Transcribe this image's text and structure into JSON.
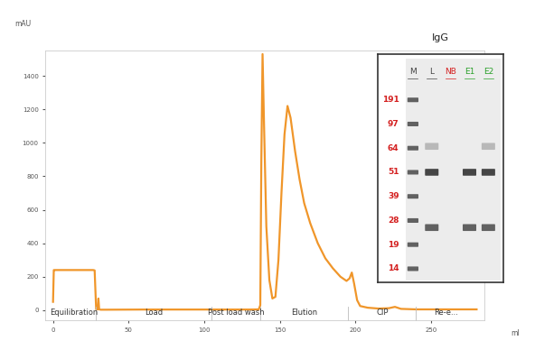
{
  "chart_data": {
    "type": "line",
    "x_label": "ml",
    "y_label": "mAU",
    "x": [
      0,
      0.5,
      1,
      26.5,
      27.5,
      28.5,
      29.5,
      30,
      30.5,
      31.5,
      35,
      60,
      105,
      130,
      136,
      137,
      137.7,
      138.5,
      139.5,
      141,
      143,
      145,
      147,
      149,
      151,
      153,
      155,
      157,
      160,
      163,
      166,
      170,
      175,
      180,
      185,
      190,
      194,
      196,
      197.5,
      199,
      201,
      203,
      208,
      215,
      222,
      226,
      230,
      240,
      260,
      280
    ],
    "values": [
      50,
      240,
      240,
      240,
      238,
      5,
      5,
      70,
      5,
      3,
      3,
      4,
      4,
      4,
      5,
      30,
      900,
      1530,
      1100,
      500,
      180,
      70,
      80,
      300,
      700,
      1050,
      1220,
      1150,
      950,
      780,
      640,
      520,
      400,
      310,
      250,
      200,
      175,
      190,
      225,
      160,
      60,
      25,
      15,
      10,
      12,
      20,
      8,
      5,
      5,
      5
    ],
    "color": "#f0962a",
    "xlim": [
      -5,
      285
    ],
    "ylim": [
      -60,
      1550
    ],
    "xticks": [
      0,
      50,
      100,
      150,
      200,
      250
    ],
    "yticks": [
      0,
      200,
      400,
      600,
      800,
      1000,
      1200,
      1400
    ],
    "phases": [
      {
        "label": "Equilibration",
        "start": 0,
        "end": 28
      },
      {
        "label": "Load",
        "start": 28,
        "end": 105
      },
      {
        "label": "Post load wash",
        "start": 105,
        "end": 137
      },
      {
        "label": "Elution",
        "start": 137,
        "end": 195
      },
      {
        "label": "CIP",
        "start": 195,
        "end": 240
      },
      {
        "label": "Re-e...",
        "start": 240,
        "end": 280
      }
    ]
  },
  "gel": {
    "title": "IgG",
    "markers": [
      191,
      97,
      64,
      51,
      39,
      28,
      19,
      14
    ],
    "marker_color": "#d42020",
    "lanes": [
      {
        "label": "M",
        "color": "#444444",
        "bands": [
          191,
          97,
          64,
          51,
          39,
          28,
          19,
          14
        ]
      },
      {
        "label": "L",
        "color": "#444444",
        "bands": [
          51,
          25,
          66
        ]
      },
      {
        "label": "NB",
        "color": "#d42020",
        "bands": []
      },
      {
        "label": "E1",
        "color": "#2aa02a",
        "bands": [
          51,
          25
        ]
      },
      {
        "label": "E2",
        "color": "#2aa02a",
        "bands": [
          51,
          25,
          66
        ]
      }
    ]
  }
}
